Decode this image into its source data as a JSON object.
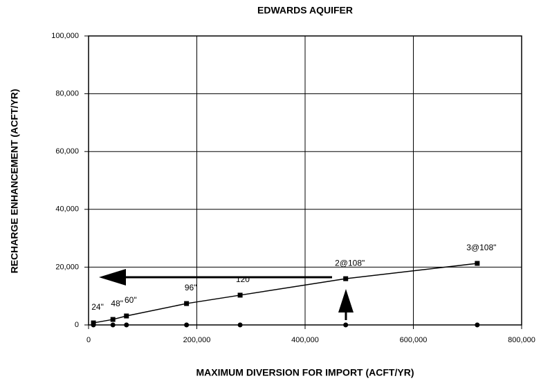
{
  "chart_data": {
    "type": "line",
    "title": "EDWARDS AQUIFER",
    "x_label": "MAXIMUM DIVERSION FOR IMPORT (ACFT/YR)",
    "y_label": "RECHARGE ENHANCEMENT (ACFT/YR)",
    "xlim": [
      0,
      800000
    ],
    "ylim": [
      0,
      100000
    ],
    "xticks": [
      0,
      {
        "value": 200000,
        "label": "200,000"
      },
      {
        "value": 400000,
        "label": "400,000"
      },
      {
        "value": 600000,
        "label": "600,000"
      },
      {
        "value": 800000,
        "label": "800,000"
      }
    ],
    "yticks": [
      0,
      {
        "value": 20000,
        "label": "20,000"
      },
      {
        "value": 40000,
        "label": "40,000"
      },
      {
        "value": 60000,
        "label": "60,000"
      },
      {
        "value": 80000,
        "label": "80,000"
      },
      {
        "value": 100000,
        "label": "100,000"
      }
    ],
    "grid": true,
    "series": [
      {
        "color": "#000000",
        "marker": "square",
        "line": true,
        "x": [
          9000,
          45000,
          70000,
          181000,
          280000,
          475000,
          718000
        ],
        "values": [
          700,
          1900,
          3100,
          7400,
          10300,
          16000,
          21300
        ],
        "labels": [
          "24\"",
          "48\"",
          "60\"",
          "96\"",
          "120\"",
          "2@108\"",
          "3@108\""
        ]
      },
      {
        "color": "#000000",
        "marker": "circle",
        "line": false,
        "x": [
          9000,
          45000,
          70000,
          181000,
          280000,
          475000,
          718000
        ],
        "values": [
          0,
          0,
          0,
          0,
          0,
          0,
          0
        ]
      }
    ]
  }
}
